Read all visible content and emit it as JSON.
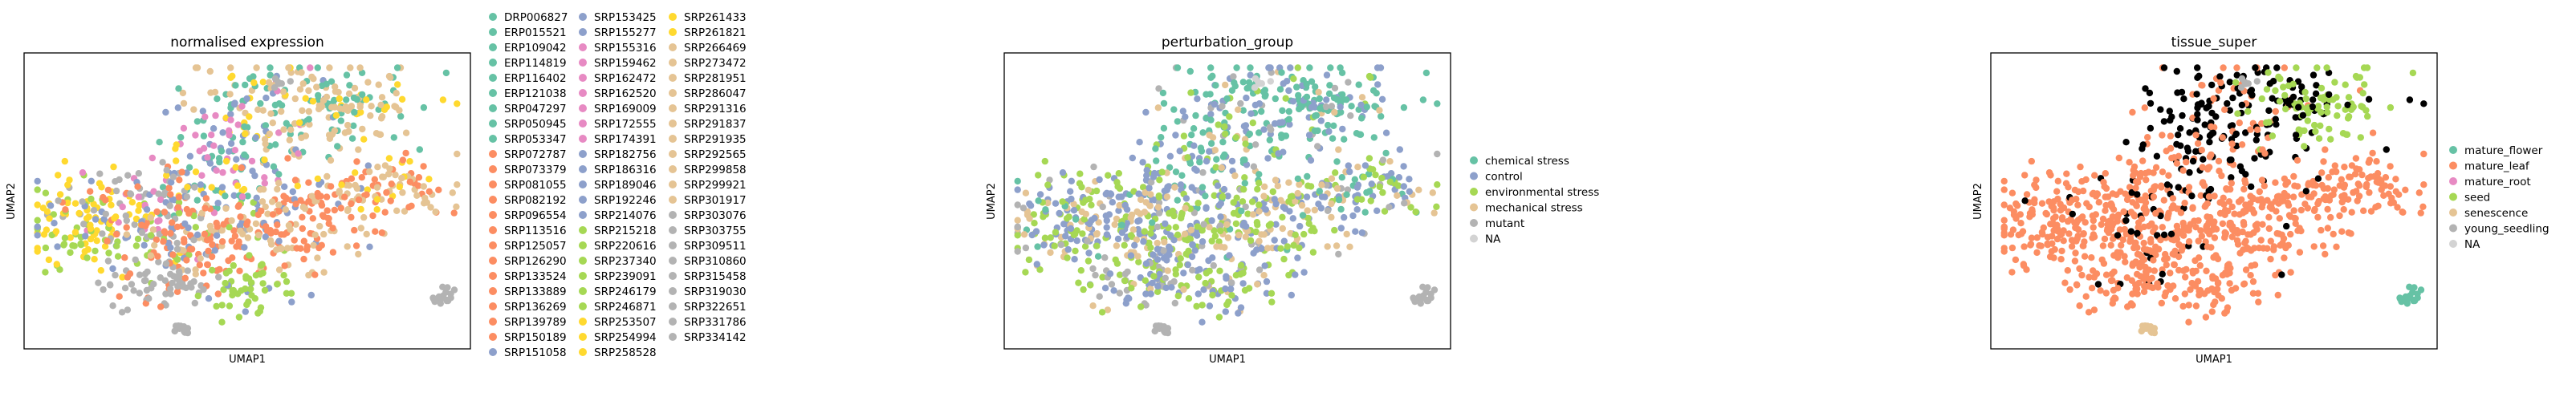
{
  "palette": {
    "set2": [
      "#66c2a5",
      "#fc8d62",
      "#8da0cb",
      "#e78ac3",
      "#a6d854",
      "#ffd92f",
      "#e5c494",
      "#b3b3b3"
    ],
    "na": "#d3d3d3",
    "frame": "#000000"
  },
  "chart_data": [
    {
      "type": "scatter",
      "title": "normalised expression",
      "xlabel": "UMAP1",
      "ylabel": "UMAP2",
      "xticks": false,
      "yticks": false,
      "legend_position": "right",
      "legend_columns": 3,
      "legend": [
        "DRP006827",
        "ERP015521",
        "ERP109042",
        "ERP114819",
        "ERP116402",
        "ERP121038",
        "SRP047297",
        "SRP050945",
        "SRP053347",
        "SRP072787",
        "SRP073379",
        "SRP081055",
        "SRP082192",
        "SRP096554",
        "SRP113516",
        "SRP125057",
        "SRP126290",
        "SRP133524",
        "SRP133889",
        "SRP136269",
        "SRP139789",
        "SRP150189",
        "SRP151058",
        "SRP153425",
        "SRP155277",
        "SRP155316",
        "SRP159462",
        "SRP162472",
        "SRP162520",
        "SRP169009",
        "SRP172555",
        "SRP174391",
        "SRP182756",
        "SRP186316",
        "SRP189046",
        "SRP192246",
        "SRP214076",
        "SRP215218",
        "SRP220616",
        "SRP237340",
        "SRP239091",
        "SRP246179",
        "SRP246871",
        "SRP253507",
        "SRP254994",
        "SRP258528",
        "SRP261433",
        "SRP261821",
        "SRP266469",
        "SRP273472",
        "SRP281951",
        "SRP286047",
        "SRP291316",
        "SRP291837",
        "SRP291935",
        "SRP292565",
        "SRP299858",
        "SRP299921",
        "SRP301917",
        "SRP303076",
        "SRP303755",
        "SRP309511",
        "SRP310860",
        "SRP315458",
        "SRP319030",
        "SRP322651",
        "SRP331786",
        "SRP334142"
      ]
    },
    {
      "type": "scatter",
      "title": "perturbation_group",
      "xlabel": "UMAP1",
      "ylabel": "UMAP2",
      "xticks": false,
      "yticks": false,
      "legend_position": "right",
      "legend": [
        "chemical stress",
        "control",
        "environmental stress",
        "mechanical stress",
        "mutant",
        "NA"
      ]
    },
    {
      "type": "scatter",
      "title": "tissue_super",
      "xlabel": "UMAP1",
      "ylabel": "UMAP2",
      "xticks": false,
      "yticks": false,
      "legend_position": "right",
      "legend": [
        "mature_flower",
        "mature_leaf",
        "mature_root",
        "seed",
        "senescence",
        "young_seedling",
        "NA"
      ]
    }
  ]
}
